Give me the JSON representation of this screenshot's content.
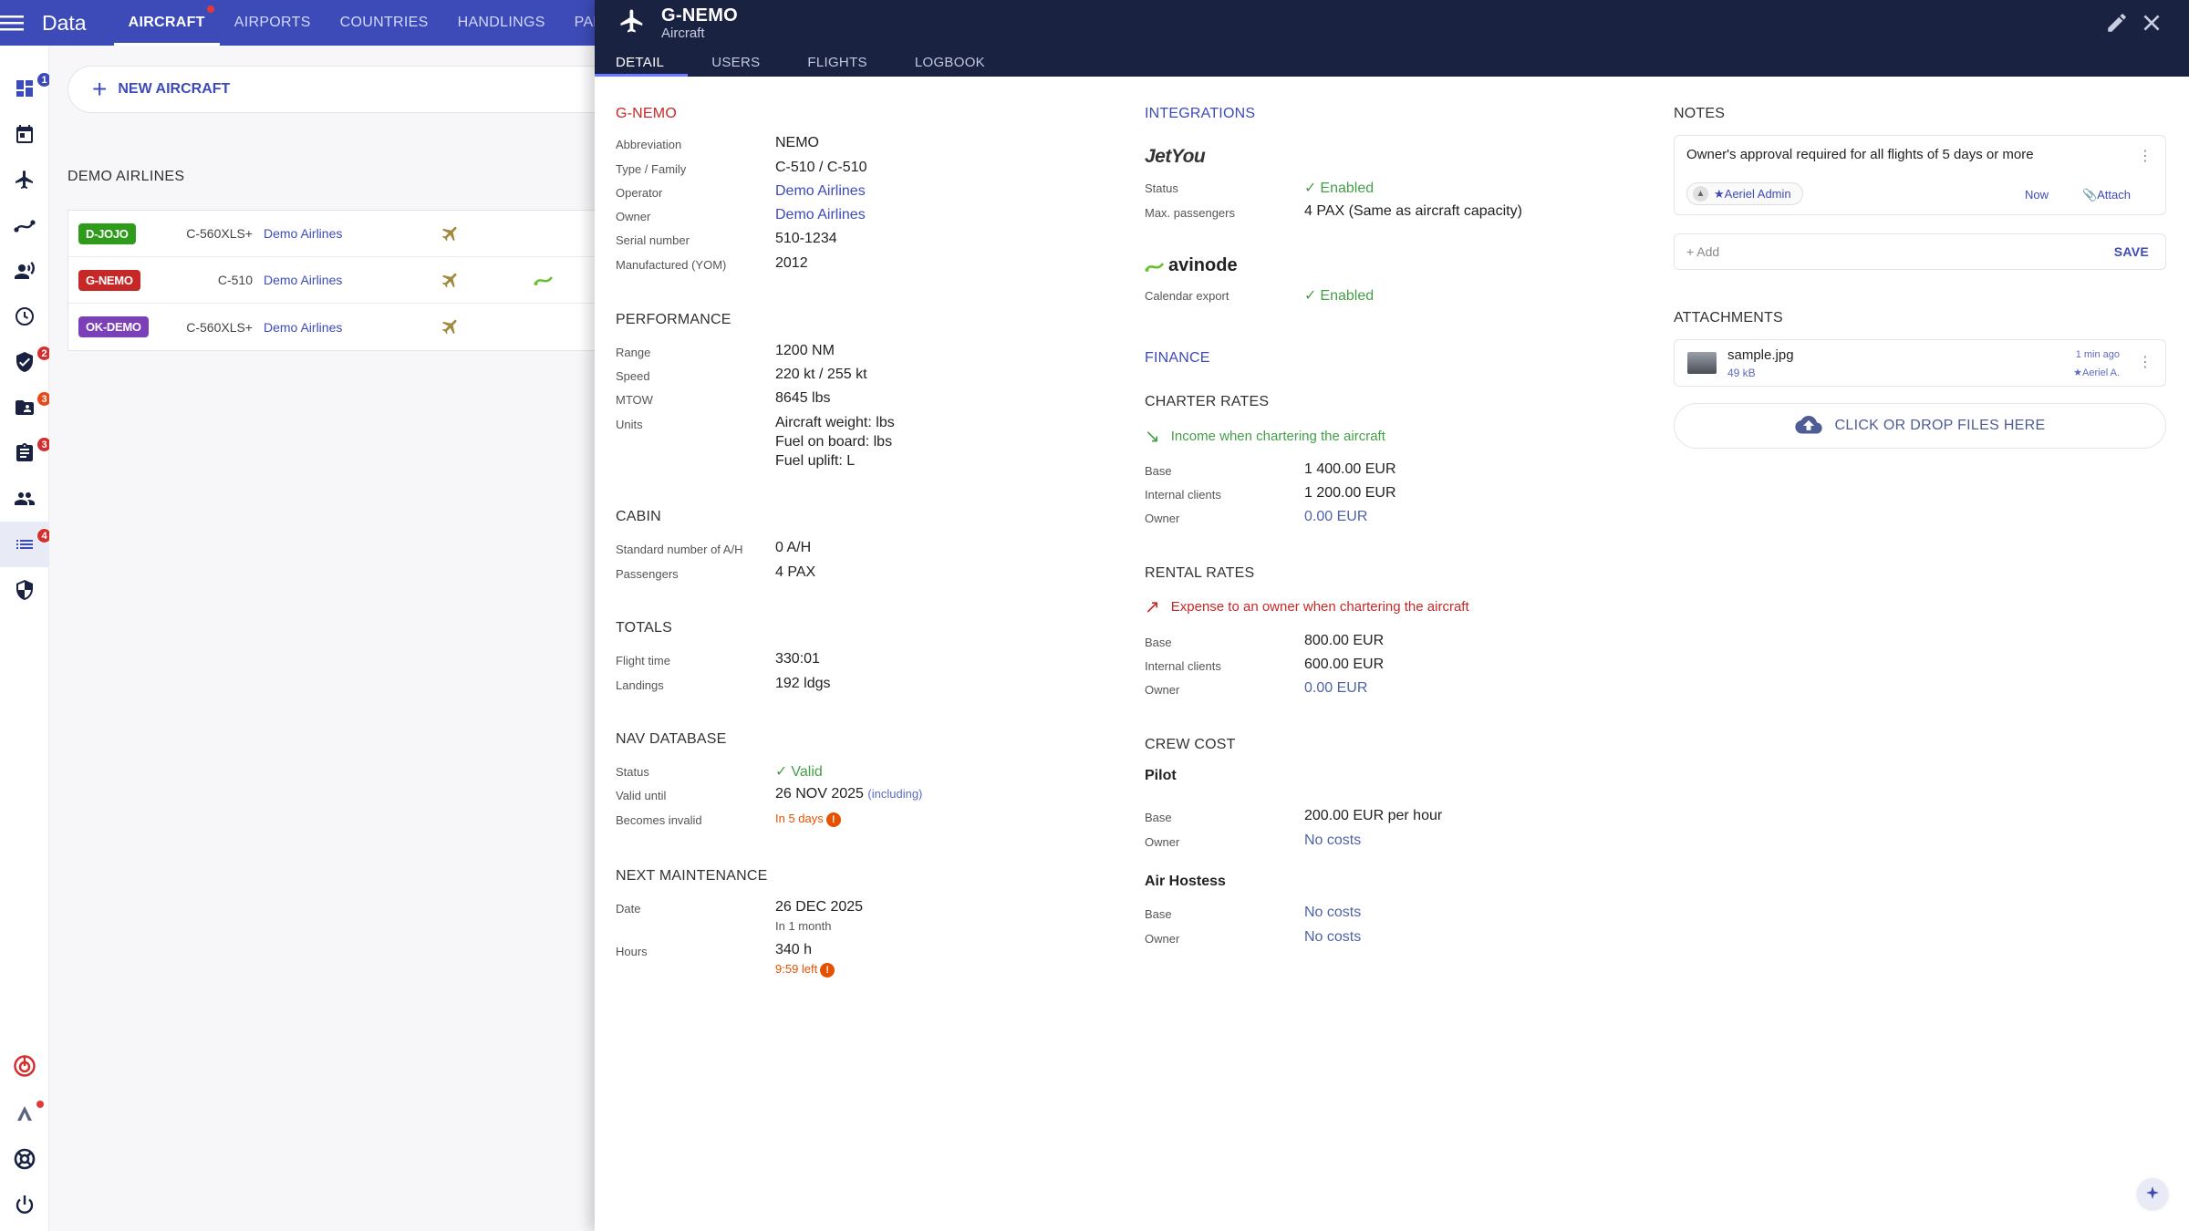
{
  "app": {
    "title": "Data"
  },
  "topnav": [
    "AIRCRAFT",
    "AIRPORTS",
    "COUNTRIES",
    "HANDLINGS",
    "PART"
  ],
  "rail_badges": {
    "dashboard": "1",
    "safety": "2",
    "crew": "3",
    "docs": "3",
    "data": "4"
  },
  "left": {
    "new_aircraft": "NEW AIRCRAFT",
    "group_title": "DEMO AIRLINES",
    "rows": [
      {
        "reg": "D-JOJO",
        "color": "#2e9b1a",
        "type": "C-560XLS+",
        "operator": "Demo Airlines"
      },
      {
        "reg": "G-NEMO",
        "color": "#c62828",
        "type": "C-510",
        "operator": "Demo Airlines"
      },
      {
        "reg": "OK-DEMO",
        "color": "#7b3fb8",
        "type": "C-560XLS+",
        "operator": "Demo Airlines"
      }
    ]
  },
  "panel": {
    "title": "G-NEMO",
    "subtitle": "Aircraft",
    "tabs": [
      "DETAIL",
      "USERS",
      "FLIGHTS",
      "LOGBOOK"
    ]
  },
  "detail": {
    "section_title": "G-NEMO",
    "fields": [
      {
        "label": "Abbreviation",
        "value": "NEMO"
      },
      {
        "label": "Type / Family",
        "value": "C-510 / C-510"
      },
      {
        "label": "Operator",
        "value": "Demo Airlines"
      },
      {
        "label": "Owner",
        "value": "Demo Airlines"
      },
      {
        "label": "Serial number",
        "value": "510-1234"
      },
      {
        "label": "Manufactured (YOM)",
        "value": "2012"
      }
    ]
  },
  "performance": {
    "title": "PERFORMANCE",
    "range_label": "Range",
    "range": "1200 NM",
    "speed_label": "Speed",
    "speed": "220 kt / 255 kt",
    "mtow_label": "MTOW",
    "mtow": "8645 lbs",
    "units_label": "Units",
    "units": [
      "Aircraft weight: lbs",
      "Fuel on board: lbs",
      "Fuel uplift: L"
    ]
  },
  "cabin": {
    "title": "CABIN",
    "std_label": "Standard number of A/H",
    "std": "0 A/H",
    "pax_label": "Passengers",
    "pax": "4 PAX"
  },
  "totals": {
    "title": "TOTALS",
    "ft_label": "Flight time",
    "ft": "330:01",
    "ldg_label": "Landings",
    "ldg": "192 ldgs"
  },
  "navdb": {
    "title": "NAV DATABASE",
    "status_label": "Status",
    "status": "Valid",
    "until_label": "Valid until",
    "until": "26 NOV 2025",
    "until_note": "(including)",
    "invalid_label": "Becomes invalid",
    "invalid": "In 5 days"
  },
  "maintenance": {
    "title": "NEXT MAINTENANCE",
    "date_label": "Date",
    "date": "26 DEC 2025",
    "date_note": "In 1 month",
    "hours_label": "Hours",
    "hours": "340 h",
    "hours_note": "9:59 left"
  },
  "integrations": {
    "title": "INTEGRATIONS",
    "jetyou_logo": "JetYou",
    "status_label": "Status",
    "status": "Enabled",
    "maxpax_label": "Max. passengers",
    "maxpax": "4 PAX (Same as aircraft capacity)",
    "avinode_logo": "avinode",
    "cal_label": "Calendar export",
    "cal": "Enabled"
  },
  "finance": {
    "title": "FINANCE",
    "charter": {
      "title": "CHARTER RATES",
      "desc": "Income when chartering the aircraft",
      "base_label": "Base",
      "base": "1 400.00 EUR",
      "int_label": "Internal clients",
      "int": "1 200.00 EUR",
      "owner_label": "Owner",
      "owner": "0.00 EUR"
    },
    "rental": {
      "title": "RENTAL RATES",
      "desc": "Expense to an owner when chartering the aircraft",
      "base_label": "Base",
      "base": "800.00 EUR",
      "int_label": "Internal clients",
      "int": "600.00 EUR",
      "owner_label": "Owner",
      "owner": "0.00 EUR"
    },
    "crew": {
      "title": "CREW COST",
      "pilot": "Pilot",
      "pilot_base_label": "Base",
      "pilot_base": "200.00 EUR per hour",
      "pilot_owner_label": "Owner",
      "pilot_owner": "No costs",
      "hostess": "Air Hostess",
      "hostess_base_label": "Base",
      "hostess_base": "No costs",
      "hostess_owner_label": "Owner",
      "hostess_owner": "No costs"
    }
  },
  "notes": {
    "title": "NOTES",
    "text": "Owner's approval required for all flights of 5 days or more",
    "author": "★Aeriel Admin",
    "time": "Now",
    "attach": "Attach",
    "add_placeholder": "+ Add",
    "save": "SAVE"
  },
  "attachments": {
    "title": "ATTACHMENTS",
    "file_name": "sample.jpg",
    "file_size": "49 kB",
    "file_time": "1 min ago",
    "file_user": "★Aeriel A.",
    "drop": "CLICK OR DROP FILES HERE"
  }
}
